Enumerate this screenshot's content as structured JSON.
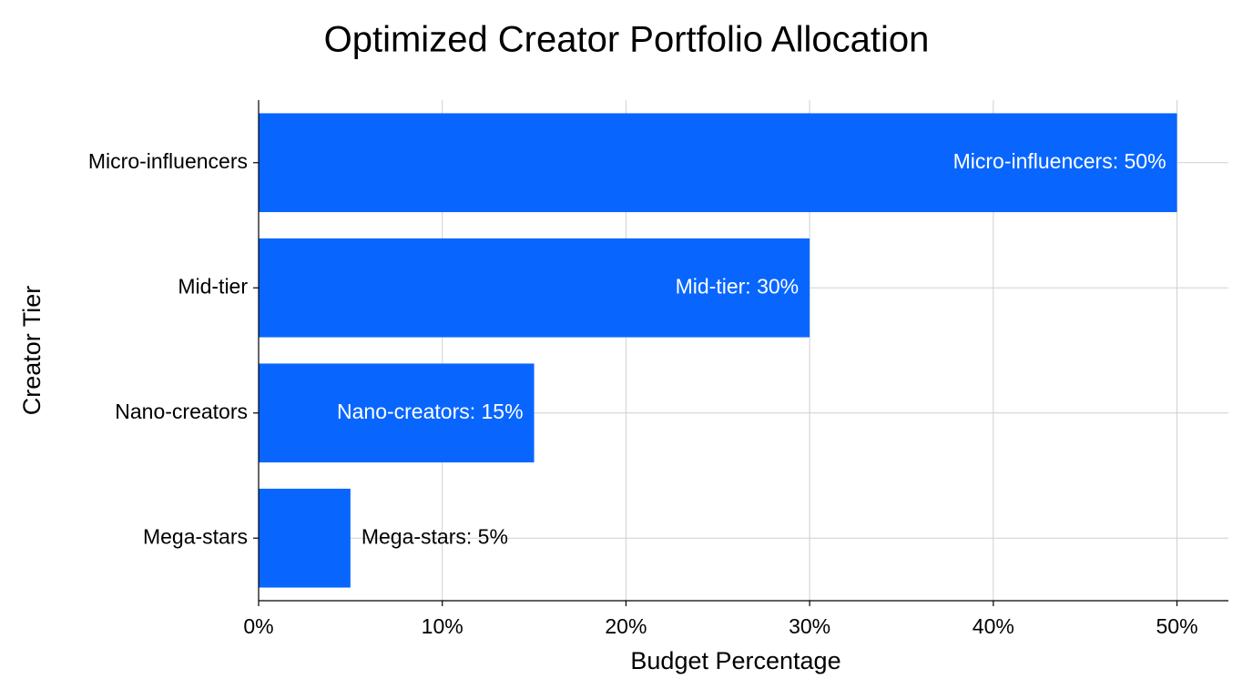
{
  "chart_data": {
    "type": "barh",
    "title": "Optimized Creator Portfolio Allocation",
    "x_label": "Budget Percentage",
    "y_label": "Creator Tier",
    "categories": [
      "Micro-influencers",
      "Mid-tier",
      "Nano-creators",
      "Mega-stars"
    ],
    "values": [
      50,
      30,
      15,
      5
    ],
    "value_labels": [
      "Micro-influencers: 50%",
      "Mid-tier: 30%",
      "Nano-creators: 15%",
      "Mega-stars: 5%"
    ],
    "color": "#0866ff",
    "xlim": [
      0,
      52.8
    ],
    "xticks": [
      {
        "value": 0,
        "label": "0%"
      },
      {
        "value": 10,
        "label": "10%"
      },
      {
        "value": 20,
        "label": "20%"
      },
      {
        "value": 30,
        "label": "30%"
      },
      {
        "value": 40,
        "label": "40%"
      },
      {
        "value": 50,
        "label": "50%"
      }
    ],
    "grid": true
  }
}
